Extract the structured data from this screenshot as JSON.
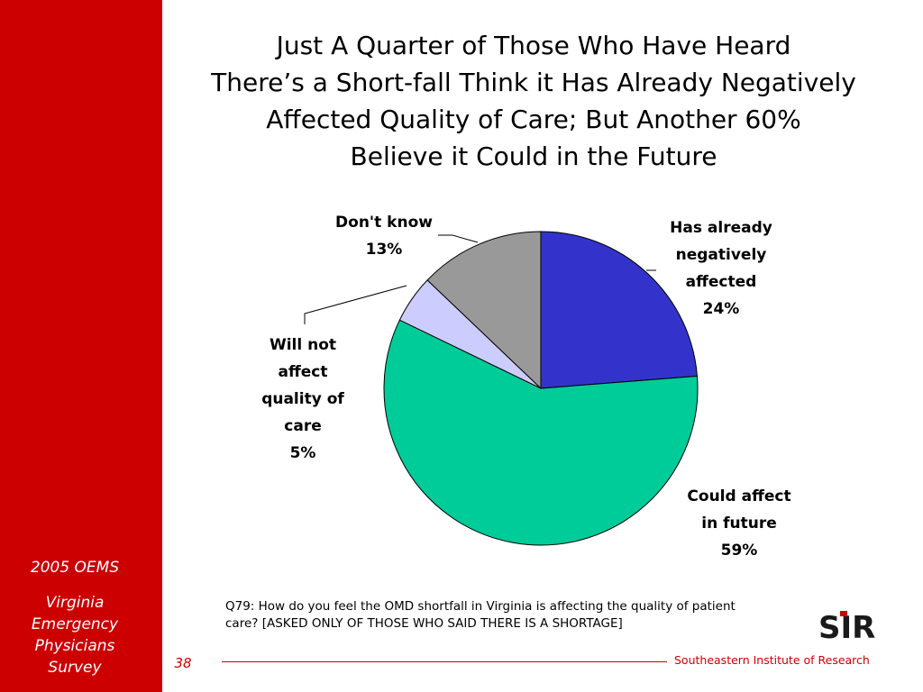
{
  "sidebar": {
    "year": "2005 OEMS",
    "subtitle_lines": [
      "Virginia",
      "Emergency",
      "Physicians",
      "Survey"
    ],
    "page_number": "38",
    "color": "#cc0000"
  },
  "title_lines": [
    "Just A Quarter of Those Who Have Heard",
    "There’s a Short-fall Think it Has Already Negatively",
    "Affected Quality of Care; But Another 60%",
    "Believe it Could in the Future"
  ],
  "chart_data": {
    "type": "pie",
    "start_angle_deg": 0,
    "direction": "clockwise",
    "slices": [
      {
        "label_lines": [
          "Has already",
          "negatively",
          "affected"
        ],
        "value_label": "24%",
        "value": 24,
        "color": "#3333cc"
      },
      {
        "label_lines": [
          "Could affect",
          "in future"
        ],
        "value_label": "59%",
        "value": 59,
        "color": "#00cc99"
      },
      {
        "label_lines": [
          "Will not",
          "affect",
          "quality of",
          "care"
        ],
        "value_label": "5%",
        "value": 5,
        "color": "#ccccff"
      },
      {
        "label_lines": [
          "Don't know"
        ],
        "value_label": "13%",
        "value": 13,
        "color": "#999999"
      }
    ]
  },
  "footer": {
    "question": "Q79: How do you feel the OMD shortfall in Virginia is affecting the quality of patient care? [ASKED ONLY OF THOSE WHO SAID THERE IS A SHORTAGE]",
    "organization": "Southeastern Institute of Research",
    "logo_text": "SIR"
  }
}
